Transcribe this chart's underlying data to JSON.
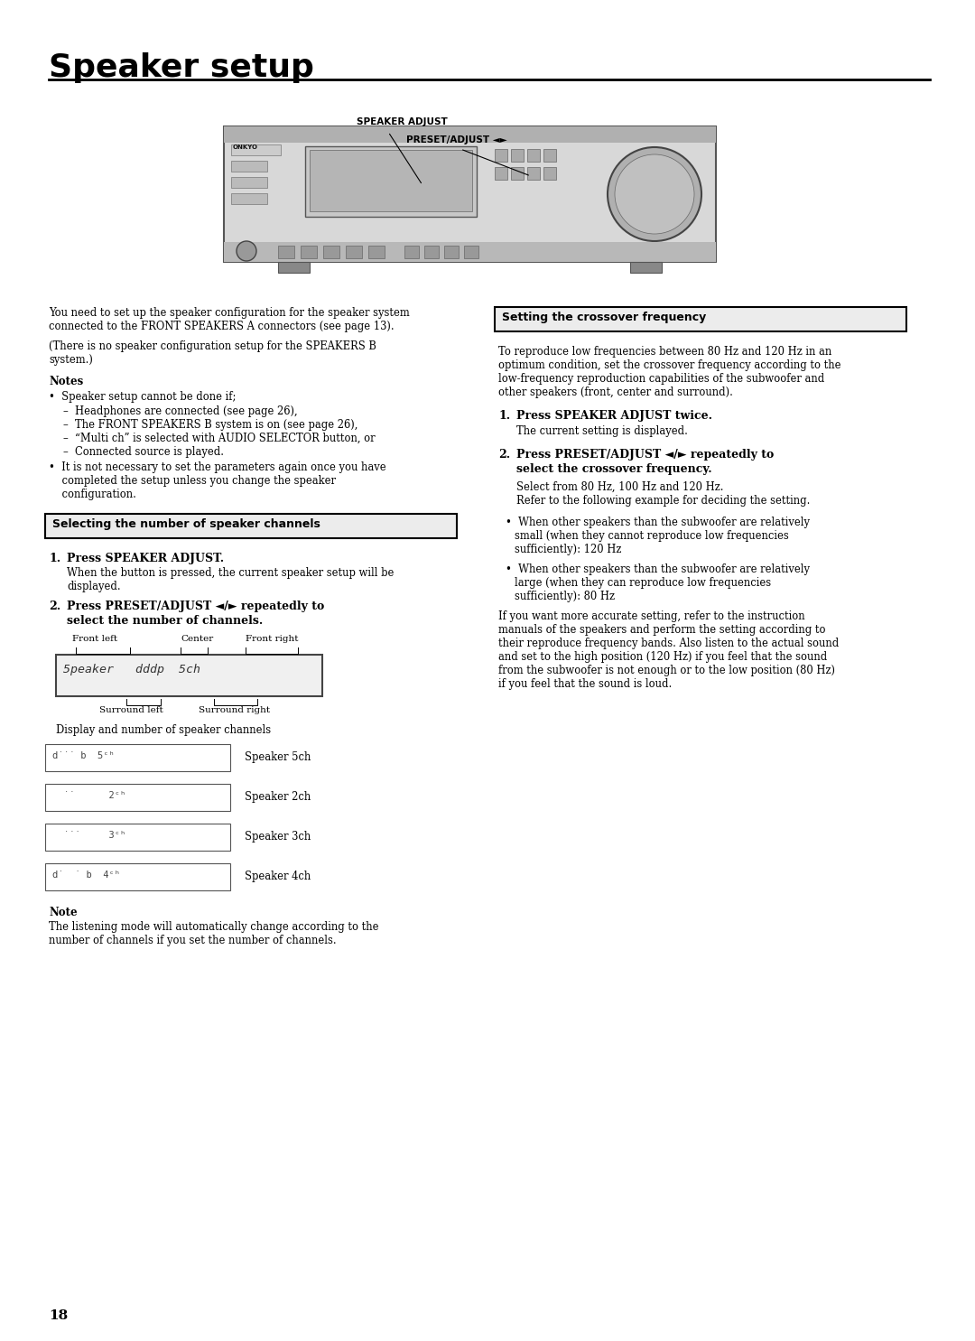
{
  "title": "Speaker setup",
  "bg_color": "#ffffff",
  "text_color": "#000000",
  "page_number": "18",
  "speaker_adjust_label": "SPEAKER ADJUST",
  "preset_adjust_label": "PRESET/ADJUST ◄►",
  "intro_text_1a": "You need to set up the speaker configuration for the speaker system",
  "intro_text_1b": "connected to the FRONT SPEAKERS A connectors (see page 13).",
  "intro_text_2a": "(There is no speaker configuration setup for the SPEAKERS B",
  "intro_text_2b": "system.)",
  "notes_title": "Notes",
  "notes_bullet1": "•  Speaker setup cannot be done if;",
  "notes_sub1": "–  Headphones are connected (see page 26),",
  "notes_sub2": "–  The FRONT SPEAKERS B system is on (see page 26),",
  "notes_sub3": "–  “Multi ch” is selected with AUDIO SELECTOR button, or",
  "notes_sub4": "–  Connected source is played.",
  "notes_bullet2a": "•  It is not necessary to set the parameters again once you have",
  "notes_bullet2b": "    completed the setup unless you change the speaker",
  "notes_bullet2c": "    configuration.",
  "box1_title": "Selecting the number of speaker channels",
  "step1a_bold": "Press SPEAKER ADJUST.",
  "step1a_text1": "When the button is pressed, the current speaker setup will be",
  "step1a_text2": "displayed.",
  "step2a_bold1": "Press PRESET/ADJUST ◄/► repeatedly to",
  "step2a_bold2": "select the number of channels.",
  "labels_front_left": "Front left",
  "labels_center": "Center",
  "labels_front_right": "Front right",
  "labels_surround_left": "Surround left",
  "labels_surround_right": "Surround right",
  "display_caption": "Display and number of speaker channels",
  "speaker_5ch": "Speaker 5ch",
  "speaker_2ch": "Speaker 2ch",
  "speaker_3ch": "Speaker 3ch",
  "speaker_4ch": "Speaker 4ch",
  "note_title": "Note",
  "note_text1": "The listening mode will automatically change according to the",
  "note_text2": "number of channels if you set the number of channels.",
  "box2_title": "Setting the crossover frequency",
  "crossover_intro1": "To reproduce low frequencies between 80 Hz and 120 Hz in an",
  "crossover_intro2": "optimum condition, set the crossover frequency according to the",
  "crossover_intro3": "low-frequency reproduction capabilities of the subwoofer and",
  "crossover_intro4": "other speakers (front, center and surround).",
  "step1b_bold": "Press SPEAKER ADJUST twice.",
  "step1b_text": "The current setting is displayed.",
  "step2b_bold1": "Press PRESET/ADJUST ◄/► repeatedly to",
  "step2b_bold2": "select the crossover frequency.",
  "step2b_text1": "Select from 80 Hz, 100 Hz and 120 Hz.",
  "step2b_text2": "Refer to the following example for deciding the setting.",
  "bullet_120hz_1": "When other speakers than the subwoofer are relatively",
  "bullet_120hz_2": "small (when they cannot reproduce low frequencies",
  "bullet_120hz_3": "sufficiently): 120 Hz",
  "bullet_80hz_1": "When other speakers than the subwoofer are relatively",
  "bullet_80hz_2": "large (when they can reproduce low frequencies",
  "bullet_80hz_3": "sufficiently): 80 Hz",
  "accurate1": "If you want more accurate setting, refer to the instruction",
  "accurate2": "manuals of the speakers and perform the setting according to",
  "accurate3": "their reproduce frequency bands. Also listen to the actual sound",
  "accurate4": "and set to the high position (120 Hz) if you feel that the sound",
  "accurate5": "from the subwoofer is not enough or to the low position (80 Hz)",
  "accurate6": "if you feel that the sound is loud."
}
